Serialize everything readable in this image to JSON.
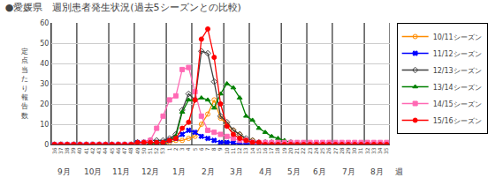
{
  "chart_data": {
    "type": "line",
    "title": "●愛媛県　週別患者発生状況(過去5シーズンとの比較)",
    "ylabel": "定\n点\n当\nた\nり\n報\n告\n数",
    "categories": [
      "36",
      "37",
      "38",
      "39",
      "40",
      "41",
      "42",
      "43",
      "44",
      "45",
      "46",
      "47",
      "48",
      "49",
      "50",
      "51",
      "52",
      "53",
      "1",
      "2",
      "3",
      "4",
      "5",
      "6",
      "7",
      "8",
      "9",
      "10",
      "11",
      "12",
      "13",
      "14",
      "15",
      "16",
      "17",
      "18",
      "19",
      "20",
      "21",
      "22",
      "23",
      "24",
      "25",
      "26",
      "27",
      "28",
      "29",
      "30",
      "31",
      "32",
      "33",
      "34",
      "35"
    ],
    "series": [
      {
        "name": "10/11シーズン",
        "color": "#FF8C00",
        "marker": "circle-open",
        "values": [
          0,
          0,
          0,
          0,
          0,
          0,
          0,
          0,
          0,
          0,
          0,
          0,
          0,
          0,
          0,
          0,
          0,
          0,
          1,
          2,
          2,
          3,
          4,
          10,
          15,
          22,
          13,
          10,
          7,
          5,
          2,
          2,
          1,
          1,
          1,
          1,
          1,
          0,
          0,
          0,
          0,
          0,
          0,
          0,
          0,
          0,
          0,
          0,
          0,
          0,
          0,
          0,
          0
        ]
      },
      {
        "name": "11/12シーズン",
        "color": "#0000FF",
        "marker": "x",
        "values": [
          0,
          0,
          0,
          0,
          0,
          0,
          0,
          0,
          0,
          0,
          0,
          0,
          0,
          1,
          1,
          1,
          1,
          1,
          2,
          3,
          5,
          7,
          6,
          4,
          3,
          2,
          1,
          1,
          1,
          0,
          0,
          0,
          0,
          0,
          0,
          0,
          0,
          0,
          0,
          0,
          0,
          0,
          0,
          0,
          0,
          0,
          0,
          0,
          0,
          0,
          0,
          0,
          0
        ]
      },
      {
        "name": "12/13シーズン",
        "color": "#404040",
        "marker": "diamond-open",
        "values": [
          0,
          0,
          0,
          0,
          0,
          0,
          0,
          0,
          0,
          0,
          0,
          0,
          0,
          1,
          1,
          2,
          2,
          2,
          3,
          5,
          17,
          25,
          22,
          46,
          45,
          31,
          14,
          11,
          7,
          5,
          3,
          2,
          1,
          1,
          1,
          1,
          1,
          1,
          0,
          0,
          0,
          0,
          0,
          0,
          0,
          0,
          0,
          0,
          0,
          0,
          0,
          0,
          0
        ]
      },
      {
        "name": "13/14シーズン",
        "color": "#008000",
        "marker": "triangle-up",
        "values": [
          0,
          0,
          0,
          0,
          0,
          0,
          0,
          0,
          0,
          0,
          0,
          0,
          0,
          0,
          0,
          0,
          1,
          1,
          2,
          4,
          16,
          22,
          22,
          23,
          22,
          18,
          25,
          30,
          28,
          23,
          14,
          12,
          8,
          6,
          4,
          3,
          2,
          1,
          1,
          1,
          0,
          0,
          0,
          0,
          0,
          0,
          0,
          0,
          0,
          0,
          0,
          0,
          0
        ]
      },
      {
        "name": "14/15シーズン",
        "color": "#FF69B4",
        "marker": "square",
        "values": [
          0,
          0,
          0,
          0,
          0,
          0,
          0,
          0,
          0,
          0,
          0,
          0,
          0,
          0,
          1,
          2,
          8,
          14,
          22,
          24,
          37,
          38,
          26,
          14,
          7,
          6,
          5,
          4,
          3,
          2,
          2,
          1,
          1,
          1,
          1,
          1,
          1,
          1,
          1,
          1,
          1,
          1,
          1,
          1,
          1,
          1,
          1,
          1,
          1,
          1,
          1,
          1,
          1
        ]
      },
      {
        "name": "15/16シーズン",
        "color": "#FF0000",
        "marker": "circle",
        "values": [
          0,
          0,
          0,
          0,
          0,
          0,
          0,
          0,
          0,
          0,
          0,
          0,
          0,
          1,
          1,
          1,
          1,
          1,
          2,
          3,
          8,
          11,
          22,
          52,
          57,
          43,
          20,
          9,
          5,
          3,
          2,
          1,
          1,
          0,
          0,
          0,
          0,
          0,
          0,
          0,
          0,
          0,
          0,
          0,
          0,
          0,
          0,
          0,
          0,
          0,
          0,
          0,
          0
        ]
      }
    ],
    "ylim": [
      0,
      60
    ],
    "yticks": [
      0,
      10,
      20,
      30,
      40,
      50,
      60
    ],
    "grid": true,
    "legend": "upper right",
    "annotations": [
      {
        "text": "9月",
        "start": "36"
      },
      {
        "text": "10月",
        "start": "40"
      },
      {
        "text": "11月",
        "start": "45"
      },
      {
        "text": "12月",
        "start": "49"
      },
      {
        "text": "1月",
        "start": "1"
      },
      {
        "text": "2月",
        "start": "5"
      },
      {
        "text": "3月",
        "start": "10"
      },
      {
        "text": "4月",
        "start": "14"
      },
      {
        "text": "5月",
        "start": "19"
      },
      {
        "text": "6月",
        "start": "23"
      },
      {
        "text": "7月",
        "start": "27"
      },
      {
        "text": "8月",
        "start": "32"
      },
      {
        "text": "週"
      }
    ]
  }
}
